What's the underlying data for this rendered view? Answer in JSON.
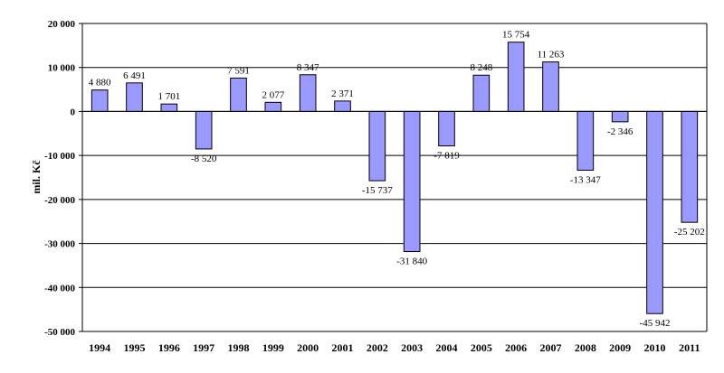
{
  "chart_data": {
    "type": "bar",
    "ylabel": "mil. Kč",
    "ylim": [
      -50000,
      20000
    ],
    "yticks": [
      20000,
      10000,
      0,
      -10000,
      -20000,
      -30000,
      -40000,
      -50000
    ],
    "ytick_labels": [
      "20 000",
      "10 000",
      "0",
      "-10 000",
      "-20 000",
      "-30 000",
      "-40 000",
      "-50 000"
    ],
    "grid": true,
    "legend": "none",
    "bar_color": "#9999FF",
    "bar_stroke": "#000000",
    "categories": [
      "1994",
      "1995",
      "1996",
      "1997",
      "1998",
      "1999",
      "2000",
      "2001",
      "2002",
      "2003",
      "2004",
      "2005",
      "2006",
      "2007",
      "2008",
      "2009",
      "2010",
      "2011"
    ],
    "values": [
      4880,
      6491,
      1701,
      -8520,
      7591,
      2077,
      8347,
      2371,
      -15737,
      -31840,
      -7819,
      8248,
      15754,
      11263,
      -13347,
      -2346,
      -45942,
      -25202
    ],
    "data_labels": [
      "4 880",
      "6 491",
      "1 701",
      "-8 520",
      "7 591",
      "2 077",
      "8 347",
      "2 371",
      "-15 737",
      "-31 840",
      "-7 819",
      "8 248",
      "15 754",
      "11 263",
      "-13 347",
      "-2 346",
      "-45 942",
      "-25 202"
    ]
  }
}
